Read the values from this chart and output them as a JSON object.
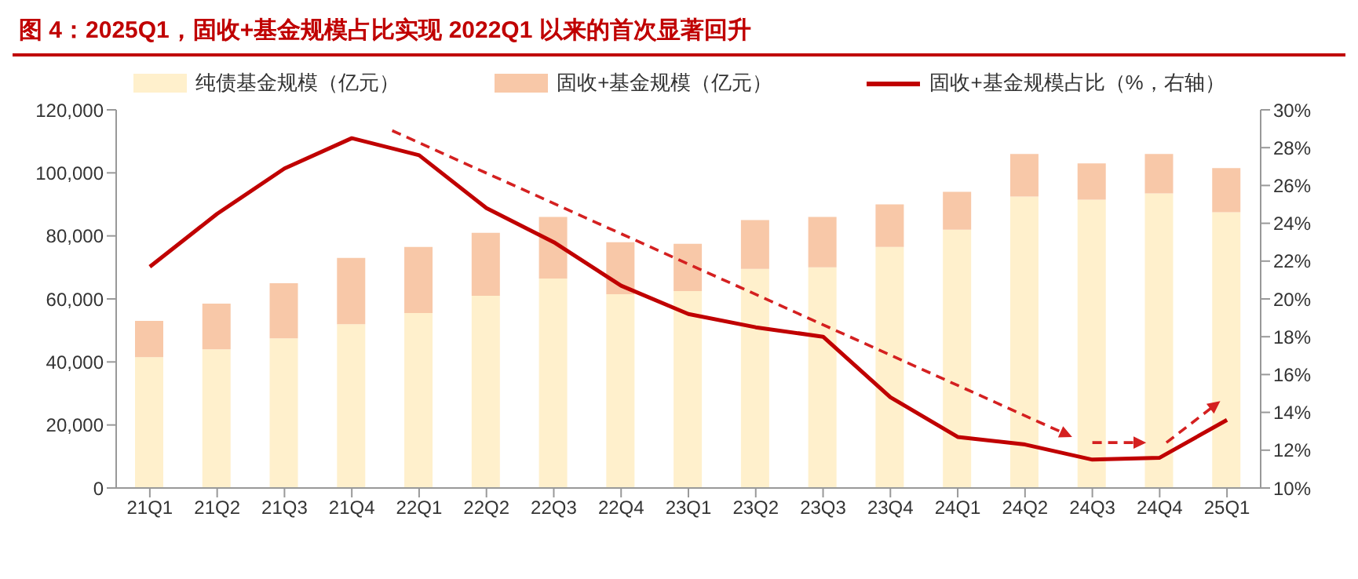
{
  "chart_data": {
    "type": "bar",
    "title": "图 4：2025Q1，固收+基金规模占比实现 2022Q1 以来的首次显著回升",
    "stacked": true,
    "legend": "top",
    "categories": [
      "21Q1",
      "21Q2",
      "21Q3",
      "21Q4",
      "22Q1",
      "22Q2",
      "22Q3",
      "22Q4",
      "23Q1",
      "23Q2",
      "23Q3",
      "23Q4",
      "24Q1",
      "24Q2",
      "24Q3",
      "24Q4",
      "25Q1"
    ],
    "series": [
      {
        "name": "纯债基金规模（亿元）",
        "color": "#fff0cc",
        "values": [
          41500,
          44000,
          47500,
          52000,
          55500,
          61000,
          66500,
          61500,
          62500,
          69500,
          70000,
          76500,
          82000,
          92500,
          91500,
          93500,
          87500
        ]
      },
      {
        "name": "固收+基金规模（亿元）",
        "color": "#f8c8a8",
        "values": [
          11500,
          14500,
          17500,
          21000,
          21000,
          20000,
          19500,
          16500,
          15000,
          15500,
          16000,
          13500,
          12000,
          13500,
          11500,
          12500,
          14000
        ]
      },
      {
        "name": "固收+基金规模占比（%，右轴）",
        "type": "line",
        "axis": "y2",
        "color": "#c00000",
        "values": [
          21.7,
          24.5,
          26.9,
          28.5,
          27.6,
          24.8,
          23.0,
          20.7,
          19.2,
          18.5,
          18.0,
          14.8,
          12.7,
          12.3,
          11.5,
          11.6,
          13.6
        ]
      }
    ],
    "ylim": [
      0,
      120000
    ],
    "yticks": [
      {
        "value": 0,
        "label": "0"
      },
      {
        "value": 20000,
        "label": "20,000"
      },
      {
        "value": 40000,
        "label": "40,000"
      },
      {
        "value": 60000,
        "label": "60,000"
      },
      {
        "value": 80000,
        "label": "80,000"
      },
      {
        "value": 100000,
        "label": "100,000"
      },
      {
        "value": 120000,
        "label": "120,000"
      }
    ],
    "y2lim": [
      10,
      30
    ],
    "y2ticks": [
      {
        "value": 10,
        "label": "10%"
      },
      {
        "value": 12,
        "label": "12%"
      },
      {
        "value": 14,
        "label": "14%"
      },
      {
        "value": 16,
        "label": "16%"
      },
      {
        "value": 18,
        "label": "18%"
      },
      {
        "value": 20,
        "label": "20%"
      },
      {
        "value": 22,
        "label": "22%"
      },
      {
        "value": 24,
        "label": "24%"
      },
      {
        "value": 26,
        "label": "26%"
      },
      {
        "value": 28,
        "label": "28%"
      },
      {
        "value": 30,
        "label": "30%"
      }
    ]
  }
}
